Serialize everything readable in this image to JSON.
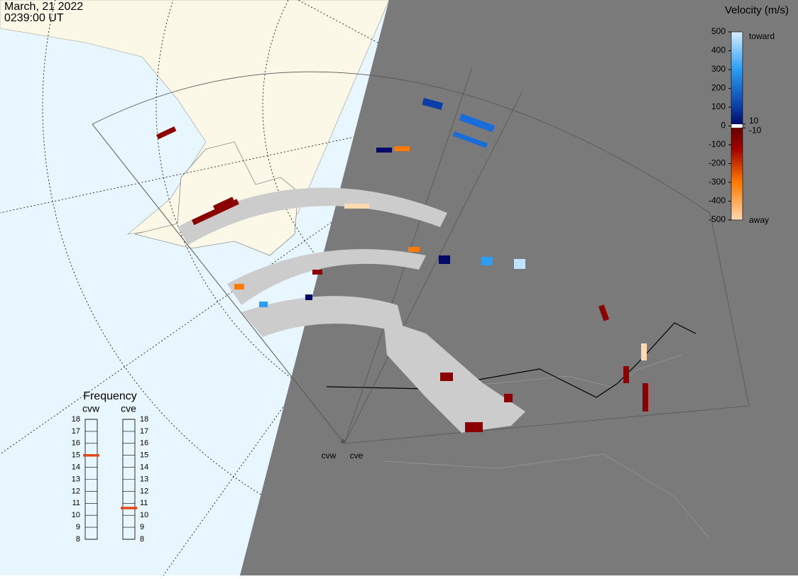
{
  "header": {
    "date": "March, 21 2022",
    "time": "0239:00 UT"
  },
  "velocity_scale": {
    "title": "Velocity (m/s)",
    "range": [
      -500,
      500
    ],
    "ticks": [
      500,
      400,
      300,
      200,
      100,
      0,
      -100,
      -200,
      -300,
      -400,
      -500
    ],
    "right_ticks": [
      10,
      -10
    ],
    "top_label": "toward",
    "bottom_label": "away"
  },
  "frequency": {
    "title": "Frequency",
    "range": [
      8,
      18
    ],
    "ticks": [
      8,
      9,
      10,
      11,
      12,
      13,
      14,
      15,
      16,
      17,
      18
    ],
    "radars": [
      {
        "name": "cvw",
        "value": 15
      },
      {
        "name": "cve",
        "value": 10.6
      }
    ]
  },
  "map": {
    "radar_labels": [
      "cvw",
      "cve"
    ]
  }
}
